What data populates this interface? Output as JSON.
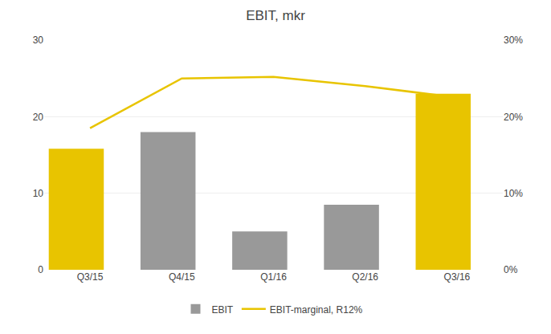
{
  "chart_data": {
    "type": "bar",
    "title": "EBIT, mkr",
    "categories": [
      "Q3/15",
      "Q4/15",
      "Q1/16",
      "Q2/16",
      "Q3/16"
    ],
    "series": [
      {
        "name": "EBIT",
        "type": "bar",
        "color": "#999999",
        "colors": [
          "#E8C400",
          "#999999",
          "#999999",
          "#999999",
          "#E8C400"
        ],
        "values": [
          15.8,
          18.0,
          5.0,
          8.5,
          23.0
        ]
      },
      {
        "name": "EBIT-marginal, R12%",
        "type": "line",
        "color": "#E8C400",
        "axis": "y2",
        "values": [
          18.5,
          25.0,
          25.2,
          24.0,
          22.5
        ]
      }
    ],
    "ylim": [
      0,
      30
    ],
    "yticks": [
      0,
      10,
      20,
      30
    ],
    "y2lim": [
      0,
      30
    ],
    "y2ticks": [
      {
        "value": 0,
        "label": "0%"
      },
      {
        "value": 10,
        "label": "10%"
      },
      {
        "value": 20,
        "label": "20%"
      },
      {
        "value": 30,
        "label": "30%"
      }
    ],
    "grid": true,
    "legend": "bottom"
  }
}
